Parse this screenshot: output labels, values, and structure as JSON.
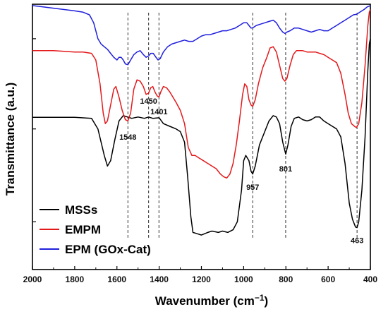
{
  "chart_data": {
    "type": "line",
    "title": "",
    "xlabel": "Wavenumber (cm",
    "xlabel_sup": "−1",
    "xlabel_close": ")",
    "ylabel": "Transmittance (a.u.)",
    "xlim": [
      2000,
      400
    ],
    "ylim": [
      0,
      1
    ],
    "x_reversed": true,
    "x_ticks": [
      2000,
      1800,
      1600,
      1400,
      1200,
      1000,
      800,
      600,
      400
    ],
    "y_tick_labels_shown": false,
    "grid": false,
    "legend_position": "bottom-left",
    "series": [
      {
        "name": "MSSs",
        "color": "#000000",
        "points": [
          [
            2000,
            0.574
          ],
          [
            1900,
            0.574
          ],
          [
            1800,
            0.574
          ],
          [
            1720,
            0.57
          ],
          [
            1690,
            0.53
          ],
          [
            1660,
            0.43
          ],
          [
            1645,
            0.39
          ],
          [
            1630,
            0.41
          ],
          [
            1610,
            0.49
          ],
          [
            1590,
            0.56
          ],
          [
            1570,
            0.58
          ],
          [
            1550,
            0.575
          ],
          [
            1530,
            0.57
          ],
          [
            1500,
            0.575
          ],
          [
            1470,
            0.57
          ],
          [
            1450,
            0.575
          ],
          [
            1430,
            0.57
          ],
          [
            1400,
            0.572
          ],
          [
            1380,
            0.55
          ],
          [
            1350,
            0.54
          ],
          [
            1320,
            0.53
          ],
          [
            1300,
            0.52
          ],
          [
            1280,
            0.48
          ],
          [
            1265,
            0.35
          ],
          [
            1250,
            0.2
          ],
          [
            1240,
            0.14
          ],
          [
            1220,
            0.135
          ],
          [
            1200,
            0.13
          ],
          [
            1170,
            0.14
          ],
          [
            1150,
            0.145
          ],
          [
            1120,
            0.14
          ],
          [
            1100,
            0.145
          ],
          [
            1075,
            0.14
          ],
          [
            1050,
            0.15
          ],
          [
            1030,
            0.18
          ],
          [
            1010,
            0.3
          ],
          [
            1000,
            0.41
          ],
          [
            990,
            0.43
          ],
          [
            975,
            0.41
          ],
          [
            965,
            0.37
          ],
          [
            957,
            0.36
          ],
          [
            945,
            0.39
          ],
          [
            925,
            0.47
          ],
          [
            900,
            0.52
          ],
          [
            880,
            0.56
          ],
          [
            860,
            0.58
          ],
          [
            845,
            0.575
          ],
          [
            830,
            0.55
          ],
          [
            815,
            0.48
          ],
          [
            801,
            0.435
          ],
          [
            790,
            0.47
          ],
          [
            775,
            0.54
          ],
          [
            760,
            0.57
          ],
          [
            740,
            0.575
          ],
          [
            720,
            0.565
          ],
          [
            700,
            0.56
          ],
          [
            680,
            0.565
          ],
          [
            660,
            0.575
          ],
          [
            640,
            0.575
          ],
          [
            620,
            0.56
          ],
          [
            600,
            0.55
          ],
          [
            580,
            0.54
          ],
          [
            560,
            0.53
          ],
          [
            540,
            0.5
          ],
          [
            520,
            0.4
          ],
          [
            500,
            0.25
          ],
          [
            485,
            0.19
          ],
          [
            470,
            0.16
          ],
          [
            463,
            0.158
          ],
          [
            455,
            0.18
          ],
          [
            440,
            0.3
          ],
          [
            425,
            0.5
          ],
          [
            412,
            0.75
          ],
          [
            405,
            0.85
          ],
          [
            400,
            0.87
          ]
        ]
      },
      {
        "name": "EMPM",
        "color": "#e31a1c",
        "points": [
          [
            2000,
            0.825
          ],
          [
            1900,
            0.825
          ],
          [
            1800,
            0.82
          ],
          [
            1760,
            0.82
          ],
          [
            1720,
            0.815
          ],
          [
            1700,
            0.79
          ],
          [
            1680,
            0.7
          ],
          [
            1665,
            0.59
          ],
          [
            1655,
            0.55
          ],
          [
            1645,
            0.56
          ],
          [
            1630,
            0.62
          ],
          [
            1615,
            0.68
          ],
          [
            1605,
            0.69
          ],
          [
            1590,
            0.65
          ],
          [
            1575,
            0.6
          ],
          [
            1560,
            0.565
          ],
          [
            1548,
            0.56
          ],
          [
            1535,
            0.59
          ],
          [
            1520,
            0.68
          ],
          [
            1505,
            0.715
          ],
          [
            1490,
            0.71
          ],
          [
            1475,
            0.69
          ],
          [
            1462,
            0.66
          ],
          [
            1450,
            0.665
          ],
          [
            1440,
            0.685
          ],
          [
            1430,
            0.69
          ],
          [
            1420,
            0.67
          ],
          [
            1410,
            0.655
          ],
          [
            1401,
            0.65
          ],
          [
            1392,
            0.67
          ],
          [
            1380,
            0.69
          ],
          [
            1365,
            0.685
          ],
          [
            1350,
            0.67
          ],
          [
            1320,
            0.63
          ],
          [
            1300,
            0.6
          ],
          [
            1280,
            0.55
          ],
          [
            1262,
            0.46
          ],
          [
            1245,
            0.43
          ],
          [
            1230,
            0.43
          ],
          [
            1210,
            0.42
          ],
          [
            1190,
            0.41
          ],
          [
            1170,
            0.4
          ],
          [
            1150,
            0.39
          ],
          [
            1130,
            0.38
          ],
          [
            1110,
            0.36
          ],
          [
            1095,
            0.35
          ],
          [
            1080,
            0.345
          ],
          [
            1065,
            0.36
          ],
          [
            1050,
            0.4
          ],
          [
            1035,
            0.47
          ],
          [
            1020,
            0.56
          ],
          [
            1005,
            0.66
          ],
          [
            995,
            0.7
          ],
          [
            985,
            0.69
          ],
          [
            975,
            0.64
          ],
          [
            965,
            0.62
          ],
          [
            957,
            0.615
          ],
          [
            945,
            0.64
          ],
          [
            930,
            0.7
          ],
          [
            910,
            0.76
          ],
          [
            890,
            0.8
          ],
          [
            875,
            0.835
          ],
          [
            860,
            0.84
          ],
          [
            845,
            0.82
          ],
          [
            830,
            0.77
          ],
          [
            815,
            0.72
          ],
          [
            805,
            0.71
          ],
          [
            795,
            0.72
          ],
          [
            780,
            0.77
          ],
          [
            765,
            0.81
          ],
          [
            750,
            0.825
          ],
          [
            720,
            0.825
          ],
          [
            700,
            0.82
          ],
          [
            680,
            0.82
          ],
          [
            660,
            0.82
          ],
          [
            640,
            0.815
          ],
          [
            620,
            0.81
          ],
          [
            600,
            0.8
          ],
          [
            580,
            0.79
          ],
          [
            560,
            0.78
          ],
          [
            540,
            0.74
          ],
          [
            520,
            0.66
          ],
          [
            505,
            0.59
          ],
          [
            490,
            0.55
          ],
          [
            475,
            0.54
          ],
          [
            466,
            0.535
          ],
          [
            455,
            0.55
          ],
          [
            440,
            0.63
          ],
          [
            425,
            0.77
          ],
          [
            412,
            0.92
          ],
          [
            405,
            0.97
          ],
          [
            400,
            0.98
          ]
        ]
      },
      {
        "name": "EPM (GOx-Cat)",
        "color": "#1f1fdd",
        "points": [
          [
            2000,
            0.995
          ],
          [
            1950,
            0.99
          ],
          [
            1900,
            0.985
          ],
          [
            1850,
            0.98
          ],
          [
            1800,
            0.975
          ],
          [
            1760,
            0.97
          ],
          [
            1730,
            0.96
          ],
          [
            1710,
            0.93
          ],
          [
            1700,
            0.9
          ],
          [
            1690,
            0.87
          ],
          [
            1675,
            0.85
          ],
          [
            1660,
            0.84
          ],
          [
            1645,
            0.83
          ],
          [
            1630,
            0.815
          ],
          [
            1615,
            0.8
          ],
          [
            1600,
            0.79
          ],
          [
            1590,
            0.8
          ],
          [
            1580,
            0.8
          ],
          [
            1570,
            0.79
          ],
          [
            1560,
            0.775
          ],
          [
            1548,
            0.772
          ],
          [
            1535,
            0.79
          ],
          [
            1520,
            0.81
          ],
          [
            1505,
            0.82
          ],
          [
            1490,
            0.825
          ],
          [
            1475,
            0.81
          ],
          [
            1462,
            0.8
          ],
          [
            1450,
            0.805
          ],
          [
            1440,
            0.815
          ],
          [
            1428,
            0.815
          ],
          [
            1415,
            0.8
          ],
          [
            1405,
            0.79
          ],
          [
            1395,
            0.795
          ],
          [
            1380,
            0.82
          ],
          [
            1360,
            0.84
          ],
          [
            1340,
            0.85
          ],
          [
            1320,
            0.855
          ],
          [
            1300,
            0.86
          ],
          [
            1280,
            0.865
          ],
          [
            1260,
            0.86
          ],
          [
            1240,
            0.86
          ],
          [
            1220,
            0.87
          ],
          [
            1200,
            0.88
          ],
          [
            1180,
            0.885
          ],
          [
            1160,
            0.885
          ],
          [
            1140,
            0.89
          ],
          [
            1120,
            0.895
          ],
          [
            1100,
            0.9
          ],
          [
            1080,
            0.9
          ],
          [
            1060,
            0.905
          ],
          [
            1040,
            0.91
          ],
          [
            1020,
            0.92
          ],
          [
            1000,
            0.93
          ],
          [
            985,
            0.93
          ],
          [
            975,
            0.92
          ],
          [
            965,
            0.91
          ],
          [
            955,
            0.912
          ],
          [
            940,
            0.92
          ],
          [
            920,
            0.925
          ],
          [
            900,
            0.93
          ],
          [
            880,
            0.935
          ],
          [
            860,
            0.94
          ],
          [
            845,
            0.93
          ],
          [
            830,
            0.91
          ],
          [
            815,
            0.895
          ],
          [
            805,
            0.89
          ],
          [
            795,
            0.895
          ],
          [
            780,
            0.9
          ],
          [
            760,
            0.91
          ],
          [
            740,
            0.91
          ],
          [
            720,
            0.905
          ],
          [
            700,
            0.9
          ],
          [
            680,
            0.895
          ],
          [
            660,
            0.9
          ],
          [
            640,
            0.905
          ],
          [
            620,
            0.9
          ],
          [
            600,
            0.9
          ],
          [
            580,
            0.91
          ],
          [
            560,
            0.92
          ],
          [
            540,
            0.93
          ],
          [
            520,
            0.94
          ],
          [
            500,
            0.95
          ],
          [
            480,
            0.96
          ],
          [
            465,
            0.962
          ],
          [
            450,
            0.97
          ],
          [
            430,
            0.98
          ],
          [
            415,
            0.99
          ],
          [
            400,
            0.995
          ]
        ]
      }
    ],
    "reference_lines": [
      1548,
      1450,
      1401,
      957,
      801,
      463
    ],
    "annotations": [
      {
        "text": "1548",
        "x": 1548,
        "y": 0.49
      },
      {
        "text": "1450",
        "x": 1450,
        "y": 0.625
      },
      {
        "text": "1401",
        "x": 1401,
        "y": 0.585
      },
      {
        "text": "957",
        "x": 957,
        "y": 0.3
      },
      {
        "text": "801",
        "x": 801,
        "y": 0.37
      },
      {
        "text": "463",
        "x": 463,
        "y": 0.1
      }
    ]
  }
}
